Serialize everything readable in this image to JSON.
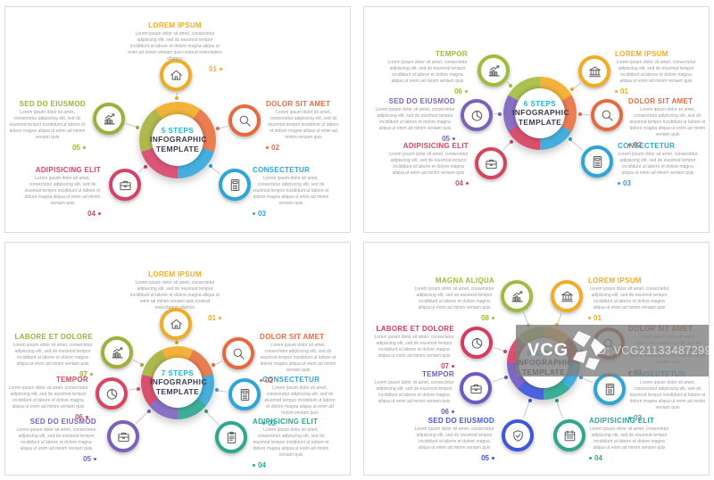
{
  "watermark": {
    "logo_text": "VCG",
    "id_label": "ID: VCG211334872995"
  },
  "panels": [
    {
      "steps_label": "5 STEPS",
      "title": "INFOGRAPHIC TEMPLATE",
      "steps_color": "#1FB4D2",
      "title_color": "#3A3A4E",
      "ring_colors": [
        "#F3B33A",
        "#EA7D52",
        "#45AEDD",
        "#DA5578",
        "#AEB84E"
      ],
      "items": [
        {
          "number": "01",
          "title": "LOREM IPSUM",
          "color": "#EFAC24",
          "icon": "house",
          "body": "Lorem ipsum dolor sit amet, consectetur adipiscing elit, sed do eiusmod tempor incididunt ut labore et dolore magna aliqua ut enim ad minim veniam quis nostrud exercitation ullamco"
        },
        {
          "number": "02",
          "title": "DOLOR SIT AMET",
          "color": "#E8693F",
          "icon": "magnifier",
          "body": "Lorem ipsum dolor sit amet, consectetur adipiscing elit, sed do eiusmod tempor incididunt ut labore et dolore magna aliqua ut enim ad minim veniam quis"
        },
        {
          "number": "03",
          "title": "CONSECTETUR",
          "color": "#2EA5D8",
          "icon": "calculator",
          "body": "Lorem ipsum dolor sit amet, consectetur adipiscing elit, sed do eiusmod tempor incididunt ut labore et dolore magna aliqua ut enim ad minim veniam quis"
        },
        {
          "number": "04",
          "title": "ADIPISICING ELIT",
          "color": "#D84167",
          "icon": "briefcase",
          "body": "Lorem ipsum dolor sit amet, consectetur adipiscing elit, sed do eiusmod tempor incididunt ut labore et dolore magna aliqua ut enim ad minim veniam quis"
        },
        {
          "number": "05",
          "title": "SED DO EIUSMOD",
          "color": "#A2AE3B",
          "icon": "bar-chart",
          "body": "Lorem ipsum dolor sit amet, consectetur adipiscing elit, sed do eiusmod tempor incididunt ut labore et dolore magna aliqua ut enim ad minim veniam quis"
        }
      ]
    },
    {
      "steps_label": "6 STEPS",
      "title": "INFOGRAPHIC TEMPLATE",
      "steps_color": "#1FB4D2",
      "title_color": "#3A3A4E",
      "ring_colors": [
        "#F3B33A",
        "#EA7D52",
        "#45AEDD",
        "#D8506B",
        "#8A70C2",
        "#ACC24E"
      ],
      "items": [
        {
          "number": "01",
          "title": "LOREM IPSUM",
          "color": "#EFAC24",
          "icon": "bank",
          "body": "Lorem ipsum dolor sit amet, consectetur adipiscing elit, sed do eiusmod tempor incididunt ut labore et dolore magna aliqua ut enim ad minim veniam quis"
        },
        {
          "number": "02",
          "title": "DOLOR SIT AMET",
          "color": "#E8693F",
          "icon": "magnifier",
          "body": "Lorem ipsum dolor sit amet, consectetur adipiscing elit, sed do eiusmod tempor incididunt ut labore et dolore magna aliqua ut enim ad minim veniam quis"
        },
        {
          "number": "03",
          "title": "CONSECTETUR",
          "color": "#2EA5D8",
          "icon": "calculator",
          "body": "Lorem ipsum dolor sit amet, consectetur adipiscing elit, sed do eiusmod tempor incididunt ut labore et dolore magna aliqua ut enim ad minim veniam quis"
        },
        {
          "number": "04",
          "title": "ADIPISICING ELIT",
          "color": "#D6455C",
          "icon": "briefcase",
          "body": "Lorem ipsum dolor sit amet, consectetur adipiscing elit, sed do eiusmod tempor incididunt ut labore et dolore magna aliqua ut enim ad minim veniam quis"
        },
        {
          "number": "05",
          "title": "SED DO EIUSMOD",
          "color": "#7B62B8",
          "icon": "pie-chart",
          "body": "Lorem ipsum dolor sit amet, consectetur adipiscing elit, sed do eiusmod tempor incididunt ut labore et dolore magna aliqua ut enim ad minim veniam quis"
        },
        {
          "number": "06",
          "title": "TEMPOR",
          "color": "#9FBC3F",
          "icon": "bar-chart",
          "body": "Lorem ipsum dolor sit amet, consectetur adipiscing elit, sed do eiusmod tempor incididunt ut labore et dolore magna aliqua ut enim ad minim veniam quis"
        }
      ]
    },
    {
      "steps_label": "7 STEPS",
      "title": "INFOGRAPHIC TEMPLATE",
      "steps_color": "#1FB4D2",
      "title_color": "#3A3A4E",
      "ring_colors": [
        "#F3B33A",
        "#EA7D52",
        "#45AEDD",
        "#3BAE95",
        "#8A70C2",
        "#D8506B",
        "#AEB84E"
      ],
      "items": [
        {
          "number": "01",
          "title": "LOREM IPSUM",
          "color": "#EFAC24",
          "icon": "house",
          "body": "Lorem ipsum dolor sit amet, consectetur adipiscing elit, sed do eiusmod tempor incididunt ut labore et dolore magna aliqua ut enim ad minim veniam quis nostrud exercitation ullamco"
        },
        {
          "number": "02",
          "title": "DOLOR SIT AMET",
          "color": "#E8693F",
          "icon": "magnifier",
          "body": "Lorem ipsum dolor sit amet, consectetur adipiscing elit, sed do eiusmod tempor incididunt ut labore et dolore magna aliqua ut enim ad minim veniam quis"
        },
        {
          "number": "03",
          "title": "CONSECTETUR",
          "color": "#2EA5D8",
          "icon": "calculator",
          "body": "Lorem ipsum dolor sit amet, consectetur adipiscing elit, sed do eiusmod tempor incididunt ut labore et dolore magna aliqua ut enim ad minim veniam quis"
        },
        {
          "number": "04",
          "title": "ADIPISICING ELIT",
          "color": "#2EA78D",
          "icon": "clipboard",
          "body": "Lorem ipsum dolor sit amet, consectetur adipiscing elit, sed do eiusmod tempor incididunt ut labore et dolore magna aliqua ut enim ad minim veniam quis"
        },
        {
          "number": "05",
          "title": "SED DO EIUSMOD",
          "color": "#7B62B8",
          "icon": "briefcase",
          "body": "Lorem ipsum dolor sit amet, consectetur adipiscing elit, sed do eiusmod tempor incididunt ut labore et dolore magna aliqua ut enim ad minim veniam quis"
        },
        {
          "number": "06",
          "title": "TEMPOR",
          "color": "#D84560",
          "icon": "pie-chart",
          "body": "Lorem ipsum dolor sit amet, consectetur adipiscing elit, sed do eiusmod tempor incididunt ut labore et dolore magna aliqua ut enim ad minim veniam quis"
        },
        {
          "number": "07",
          "title": "LABORE ET DOLORE",
          "color": "#A2AE3B",
          "icon": "bar-chart",
          "body": "Lorem ipsum dolor sit amet, consectetur adipiscing elit, sed do eiusmod tempor incididunt ut labore et dolore magna aliqua ut enim ad minim veniam quis"
        }
      ]
    },
    {
      "steps_label": "8 STEPS",
      "title": "INFOGRAPHIC TEMPLATE",
      "steps_color": "#1FB4D2",
      "title_color": "#3A3A4E",
      "ring_colors": [
        "#F3B33A",
        "#C3553B",
        "#45AEDD",
        "#3BAE95",
        "#4C63DE",
        "#7E66C4",
        "#D8506B",
        "#ACC24E"
      ],
      "items": [
        {
          "number": "01",
          "title": "LOREM IPSUM",
          "color": "#EFAC24",
          "icon": "bank",
          "body": "Lorem ipsum dolor sit amet, consectetur adipiscing elit, sed do eiusmod tempor incididunt ut labore et dolore magna aliqua ut enim ad minim veniam quis"
        },
        {
          "number": "02",
          "title": "DOLOR SIT AMET",
          "color": "#BF4E33",
          "icon": "magnifier",
          "body": "Lorem ipsum dolor sit amet, consectetur adipiscing elit, sed do eiusmod tempor incididunt ut labore et dolore magna aliqua ut enim ad minim veniam quis"
        },
        {
          "number": "03",
          "title": "CONSECTETUR",
          "color": "#2EA5D8",
          "icon": "calculator",
          "body": "Lorem ipsum dolor sit amet, consectetur adipiscing elit, sed do eiusmod tempor incididunt ut labore et dolore magna aliqua ut enim ad minim veniam quis"
        },
        {
          "number": "04",
          "title": "ADIPISICING ELIT",
          "color": "#2EA78D",
          "icon": "calendar",
          "body": "Lorem ipsum dolor sit amet, consectetur adipiscing elit, sed do eiusmod tempor incididunt ut labore et dolore magna aliqua ut enim ad minim veniam quis"
        },
        {
          "number": "05",
          "title": "SED DO EIUSMOD",
          "color": "#3D56DD",
          "icon": "shield-check",
          "body": "Lorem ipsum dolor sit amet, consectetur adipiscing elit, sed do eiusmod tempor incididunt ut labore et dolore magna aliqua ut enim ad minim veniam quis"
        },
        {
          "number": "06",
          "title": "TEMPOR",
          "color": "#7058C6",
          "icon": "briefcase",
          "body": "Lorem ipsum dolor sit amet, consectetur adipiscing elit, sed do eiusmod tempor incididunt ut labore et dolore magna aliqua ut enim ad minim veniam quis"
        },
        {
          "number": "07",
          "title": "LABORE ET DOLORE",
          "color": "#D63A5E",
          "icon": "pie-chart",
          "body": "Lorem ipsum dolor sit amet, consectetur adipiscing elit, sed do eiusmod tempor incididunt ut labore et dolore magna aliqua ut enim ad minim veniam quis"
        },
        {
          "number": "08",
          "title": "MAGNA ALIQUA",
          "color": "#9FBC3F",
          "icon": "bar-chart",
          "body": "Lorem ipsum dolor sit amet, consectetur adipiscing elit, sed do eiusmod tempor incididunt ut labore et dolore magna aliqua ut enim ad minim veniam quis"
        }
      ]
    }
  ]
}
